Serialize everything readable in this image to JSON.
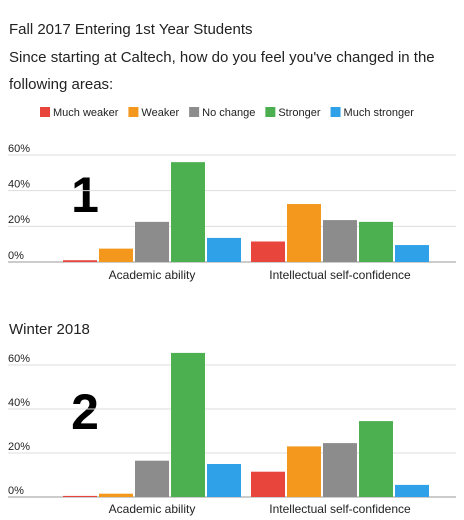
{
  "chart_data": [
    {
      "type": "bar",
      "title": "Fall 2017 Entering 1st Year Students",
      "subtitle": "Since starting at Caltech, how do you feel you've changed in the following areas:",
      "annotation": "1",
      "categories": [
        "Academic ability",
        "Intellectual self-confidence"
      ],
      "series": [
        {
          "name": "Much weaker",
          "color": "#e8453c",
          "values": [
            1,
            11.5
          ]
        },
        {
          "name": "Weaker",
          "color": "#f4971d",
          "values": [
            7.5,
            32.5
          ]
        },
        {
          "name": "No change",
          "color": "#8c8c8c",
          "values": [
            22.5,
            23.5
          ]
        },
        {
          "name": "Stronger",
          "color": "#4caf50",
          "values": [
            56,
            22.5
          ]
        },
        {
          "name": "Much stronger",
          "color": "#2ea1e8",
          "values": [
            13.5,
            9.5
          ]
        }
      ],
      "ylim": [
        0,
        60
      ],
      "yticks": [
        {
          "value": 0,
          "label": "0%"
        },
        {
          "value": 20,
          "label": "20%"
        },
        {
          "value": 40,
          "label": "40%"
        },
        {
          "value": 60,
          "label": "60%"
        }
      ],
      "grid": true,
      "legend": "top"
    },
    {
      "type": "bar",
      "title": "Winter 2018",
      "annotation": "2",
      "categories": [
        "Academic ability",
        "Intellectual self-confidence"
      ],
      "series": [
        {
          "color": "#e8453c",
          "values": [
            0.5,
            11.5
          ]
        },
        {
          "color": "#f4971d",
          "values": [
            1.5,
            23
          ]
        },
        {
          "color": "#8c8c8c",
          "values": [
            16.5,
            24.5
          ]
        },
        {
          "color": "#4caf50",
          "values": [
            65.5,
            34.5
          ]
        },
        {
          "color": "#2ea1e8",
          "values": [
            15,
            5.5
          ]
        }
      ],
      "ylim": [
        0,
        60
      ],
      "yticks": [
        {
          "value": 0,
          "label": "0%"
        },
        {
          "value": 20,
          "label": "20%"
        },
        {
          "value": 40,
          "label": "40%"
        },
        {
          "value": 60,
          "label": "60%"
        }
      ],
      "grid": true
    }
  ]
}
